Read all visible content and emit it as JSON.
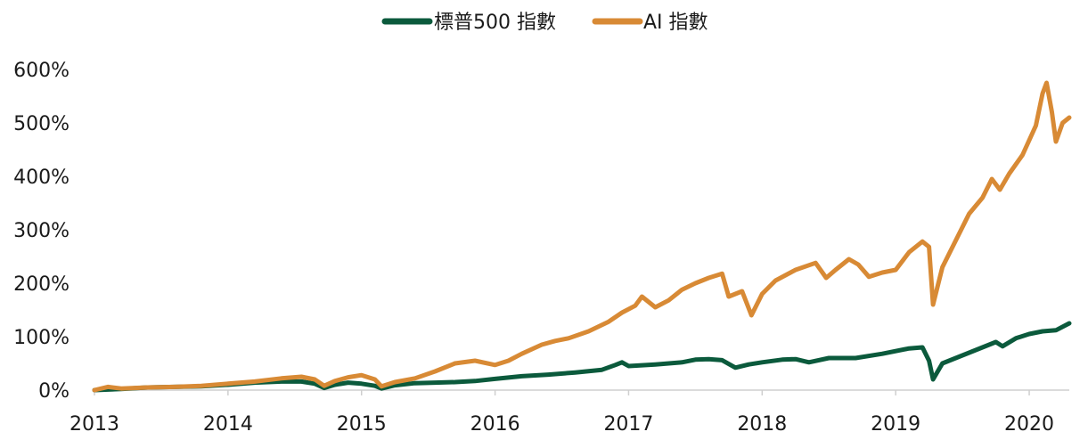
{
  "chart_data": {
    "type": "line",
    "x_ticks": [
      "2013",
      "2014",
      "2015",
      "2016",
      "2017",
      "2018",
      "2019",
      "2020"
    ],
    "y_ticks": [
      "0%",
      "100%",
      "200%",
      "300%",
      "400%",
      "500%",
      "600%"
    ],
    "ylim": [
      0,
      600
    ],
    "xlim": [
      2013.0,
      2020.3
    ],
    "grid": false,
    "legend_position": "top-center",
    "series": [
      {
        "name": "標普500 指數",
        "color": "#0b5a3c",
        "points": [
          [
            2013.0,
            0
          ],
          [
            2013.2,
            2
          ],
          [
            2013.4,
            5
          ],
          [
            2013.6,
            6
          ],
          [
            2013.8,
            7
          ],
          [
            2014.0,
            10
          ],
          [
            2014.2,
            14
          ],
          [
            2014.4,
            16
          ],
          [
            2014.55,
            16
          ],
          [
            2014.65,
            12
          ],
          [
            2014.72,
            4
          ],
          [
            2014.8,
            10
          ],
          [
            2014.9,
            14
          ],
          [
            2015.0,
            12
          ],
          [
            2015.1,
            8
          ],
          [
            2015.15,
            3
          ],
          [
            2015.25,
            9
          ],
          [
            2015.4,
            13
          ],
          [
            2015.55,
            14
          ],
          [
            2015.7,
            15
          ],
          [
            2015.85,
            17
          ],
          [
            2016.0,
            21
          ],
          [
            2016.2,
            26
          ],
          [
            2016.4,
            29
          ],
          [
            2016.6,
            33
          ],
          [
            2016.8,
            38
          ],
          [
            2016.9,
            47
          ],
          [
            2016.95,
            52
          ],
          [
            2017.0,
            45
          ],
          [
            2017.2,
            48
          ],
          [
            2017.4,
            52
          ],
          [
            2017.5,
            57
          ],
          [
            2017.6,
            58
          ],
          [
            2017.7,
            56
          ],
          [
            2017.8,
            42
          ],
          [
            2017.9,
            48
          ],
          [
            2018.0,
            52
          ],
          [
            2018.15,
            57
          ],
          [
            2018.25,
            58
          ],
          [
            2018.35,
            52
          ],
          [
            2018.5,
            60
          ],
          [
            2018.7,
            60
          ],
          [
            2018.9,
            68
          ],
          [
            2019.1,
            78
          ],
          [
            2019.2,
            80
          ],
          [
            2019.25,
            55
          ],
          [
            2019.28,
            20
          ],
          [
            2019.35,
            50
          ],
          [
            2019.5,
            65
          ],
          [
            2019.65,
            80
          ],
          [
            2019.75,
            90
          ],
          [
            2019.8,
            82
          ],
          [
            2019.9,
            97
          ],
          [
            2020.0,
            105
          ],
          [
            2020.1,
            110
          ],
          [
            2020.2,
            112
          ],
          [
            2020.3,
            125
          ]
        ]
      },
      {
        "name": "AI 指數",
        "color": "#d88a35",
        "points": [
          [
            2013.0,
            0
          ],
          [
            2013.1,
            6
          ],
          [
            2013.2,
            3
          ],
          [
            2013.4,
            5
          ],
          [
            2013.6,
            6
          ],
          [
            2013.8,
            8
          ],
          [
            2014.0,
            12
          ],
          [
            2014.2,
            16
          ],
          [
            2014.4,
            22
          ],
          [
            2014.55,
            25
          ],
          [
            2014.65,
            20
          ],
          [
            2014.72,
            8
          ],
          [
            2014.8,
            17
          ],
          [
            2014.9,
            24
          ],
          [
            2015.0,
            28
          ],
          [
            2015.1,
            20
          ],
          [
            2015.15,
            7
          ],
          [
            2015.25,
            15
          ],
          [
            2015.4,
            22
          ],
          [
            2015.55,
            35
          ],
          [
            2015.7,
            50
          ],
          [
            2015.85,
            55
          ],
          [
            2016.0,
            47
          ],
          [
            2016.1,
            55
          ],
          [
            2016.2,
            68
          ],
          [
            2016.35,
            85
          ],
          [
            2016.45,
            92
          ],
          [
            2016.55,
            97
          ],
          [
            2016.7,
            110
          ],
          [
            2016.85,
            128
          ],
          [
            2016.95,
            145
          ],
          [
            2017.05,
            158
          ],
          [
            2017.1,
            175
          ],
          [
            2017.2,
            155
          ],
          [
            2017.3,
            168
          ],
          [
            2017.4,
            188
          ],
          [
            2017.5,
            200
          ],
          [
            2017.6,
            210
          ],
          [
            2017.7,
            218
          ],
          [
            2017.75,
            175
          ],
          [
            2017.85,
            185
          ],
          [
            2017.92,
            140
          ],
          [
            2018.0,
            180
          ],
          [
            2018.1,
            205
          ],
          [
            2018.25,
            225
          ],
          [
            2018.4,
            238
          ],
          [
            2018.48,
            210
          ],
          [
            2018.55,
            225
          ],
          [
            2018.65,
            245
          ],
          [
            2018.72,
            235
          ],
          [
            2018.8,
            212
          ],
          [
            2018.9,
            220
          ],
          [
            2019.0,
            225
          ],
          [
            2019.1,
            258
          ],
          [
            2019.2,
            278
          ],
          [
            2019.25,
            268
          ],
          [
            2019.28,
            160
          ],
          [
            2019.35,
            230
          ],
          [
            2019.45,
            280
          ],
          [
            2019.55,
            330
          ],
          [
            2019.65,
            360
          ],
          [
            2019.72,
            395
          ],
          [
            2019.78,
            375
          ],
          [
            2019.85,
            405
          ],
          [
            2019.95,
            440
          ],
          [
            2020.05,
            495
          ],
          [
            2020.1,
            555
          ],
          [
            2020.13,
            575
          ],
          [
            2020.17,
            520
          ],
          [
            2020.2,
            465
          ],
          [
            2020.25,
            500
          ],
          [
            2020.3,
            510
          ]
        ]
      }
    ]
  }
}
